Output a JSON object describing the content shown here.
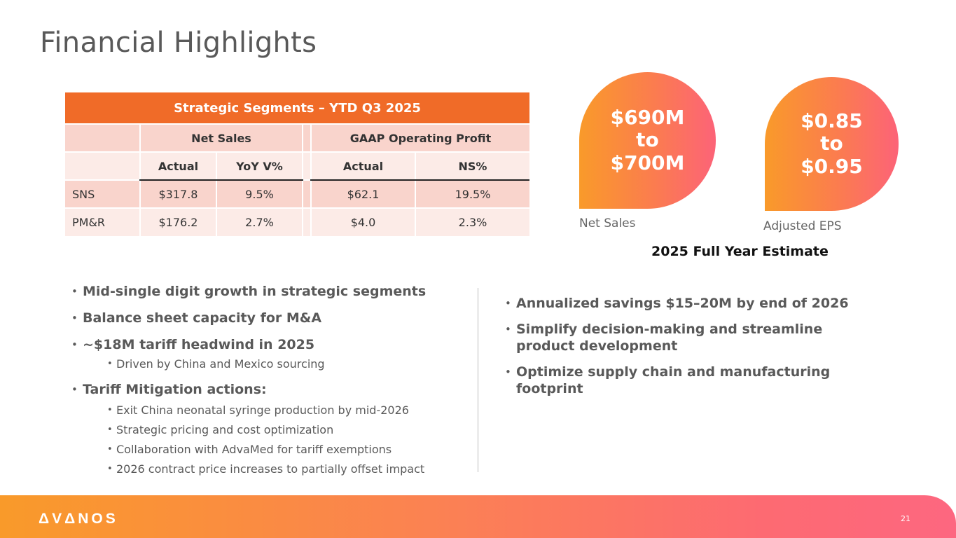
{
  "title": "Financial Highlights",
  "table": {
    "caption": "Strategic Segments – YTD Q3 2025",
    "group_headers": {
      "net_sales": "Net Sales",
      "gaap": "GAAP Operating Profit"
    },
    "sub_headers": {
      "ns_actual": "Actual",
      "ns_yoy": "YoY V%",
      "op_actual": "Actual",
      "op_ns": "NS%"
    },
    "rows": [
      {
        "segment": "SNS",
        "ns_actual": "$317.8",
        "yoy": "9.5%",
        "op_actual": "$62.1",
        "ns_pct": "19.5%"
      },
      {
        "segment": "PM&R",
        "ns_actual": "$176.2",
        "yoy": "2.7%",
        "op_actual": "$4.0",
        "ns_pct": "2.3%"
      }
    ]
  },
  "estimates": {
    "net_sales": {
      "line1": "$690M",
      "line2": "to",
      "line3": "$700M",
      "label": "Net Sales"
    },
    "eps": {
      "line1": "$0.85",
      "line2": "to",
      "line3": "$0.95",
      "label": "Adjusted EPS"
    },
    "caption": "2025 Full Year Estimate"
  },
  "left_bullets": {
    "b1": "Mid-single digit growth in strategic segments",
    "b2": "Balance sheet capacity for M&A",
    "b3": "~$18M tariff headwind in 2025",
    "b3_sub1": "Driven by China and Mexico sourcing",
    "b4": "Tariff Mitigation actions:",
    "b4_sub1": "Exit China neonatal syringe production by mid-2026",
    "b4_sub2": "Strategic pricing and cost optimization",
    "b4_sub3": "Collaboration with AdvaMed for tariff exemptions",
    "b4_sub4": "2026 contract price increases to partially offset impact"
  },
  "right_bullets": {
    "b1": "Annualized savings $15–20M by end of 2026",
    "b2": "Simplify decision-making and streamline product development",
    "b3": "Optimize supply chain and manufacturing footprint"
  },
  "footer": {
    "logo": "ΔVΔNOS",
    "page_number": "21"
  },
  "colors": {
    "accent": "#f06b28",
    "gradient_start": "#f99a2a",
    "gradient_end": "#fc6378"
  }
}
